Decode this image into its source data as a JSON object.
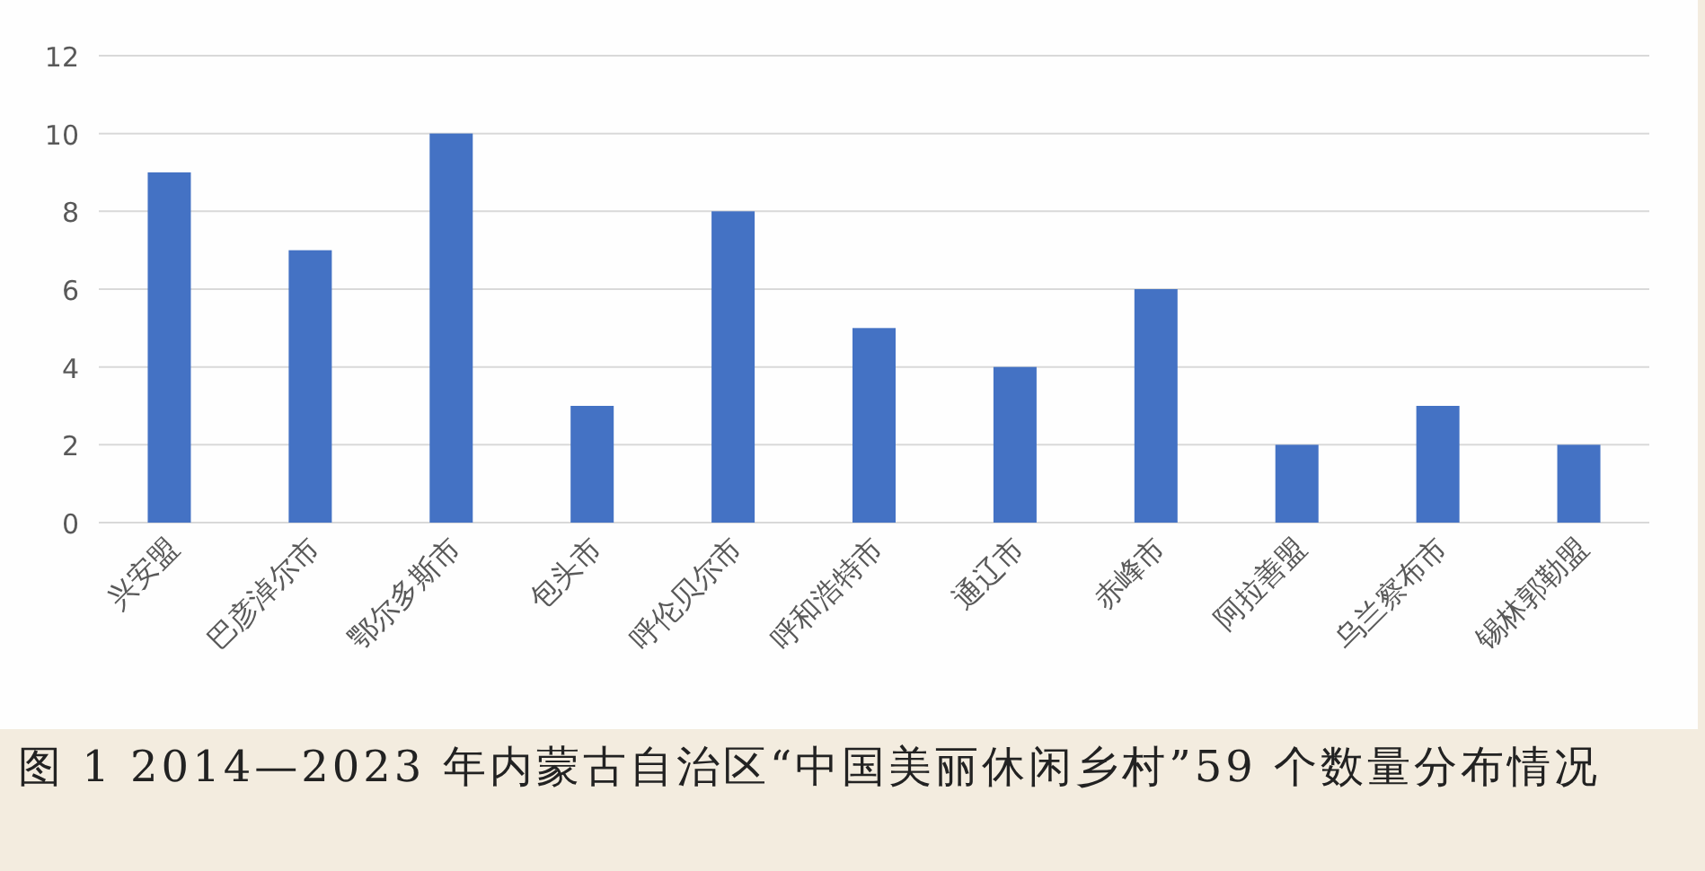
{
  "chart_data": {
    "type": "bar",
    "categories": [
      "兴安盟",
      "巴彦淖尔市",
      "鄂尔多斯市",
      "包头市",
      "呼伦贝尔市",
      "呼和浩特市",
      "通辽市",
      "赤峰市",
      "阿拉善盟",
      "乌兰察布市",
      "锡林郭勒盟"
    ],
    "values": [
      9,
      7,
      10,
      3,
      8,
      5,
      4,
      6,
      2,
      3,
      2
    ],
    "color": "#4472c4",
    "ylim": [
      0,
      12
    ],
    "yticks": [
      0,
      2,
      4,
      6,
      8,
      10,
      12
    ],
    "grid": "y",
    "annotations": [
      "图 1 2014—2023 年内蒙古自治区“中国美丽休闲乡村”59 个数量分布情况"
    ]
  }
}
